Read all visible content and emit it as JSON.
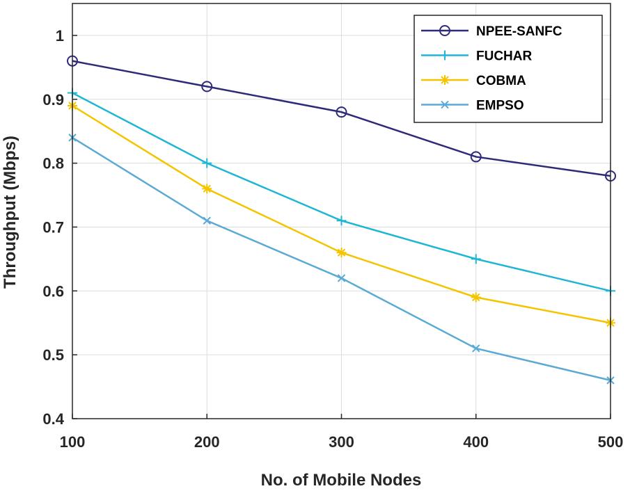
{
  "chart_data": {
    "type": "line",
    "xlabel": "No. of Mobile Nodes",
    "ylabel": "Throughput (Mbps)",
    "x": [
      100,
      200,
      300,
      400,
      500
    ],
    "xlim": [
      100,
      500
    ],
    "ylim": [
      0.4,
      1.05
    ],
    "xticks": [
      100,
      200,
      300,
      400,
      500
    ],
    "yticks": [
      0.4,
      0.5,
      0.6,
      0.7,
      0.8,
      0.9,
      1
    ],
    "xtick_labels": [
      "100",
      "200",
      "300",
      "400",
      "500"
    ],
    "ytick_labels": [
      "0.4",
      "0.5",
      "0.6",
      "0.7",
      "0.8",
      "0.9",
      "1"
    ],
    "grid": true,
    "legend_position": "top-right",
    "series": [
      {
        "name": "NPEE-SANFC",
        "values": [
          0.96,
          0.92,
          0.88,
          0.81,
          0.78
        ],
        "color": "#2e2a78",
        "marker": "circle"
      },
      {
        "name": "FUCHAR",
        "values": [
          0.91,
          0.8,
          0.71,
          0.65,
          0.6
        ],
        "color": "#1fb6d6",
        "marker": "plus"
      },
      {
        "name": "COBMA",
        "values": [
          0.89,
          0.76,
          0.66,
          0.59,
          0.55
        ],
        "color": "#f5c400",
        "marker": "asterisk"
      },
      {
        "name": "EMPSO",
        "values": [
          0.84,
          0.71,
          0.62,
          0.51,
          0.46
        ],
        "color": "#5aaad6",
        "marker": "x"
      }
    ]
  }
}
